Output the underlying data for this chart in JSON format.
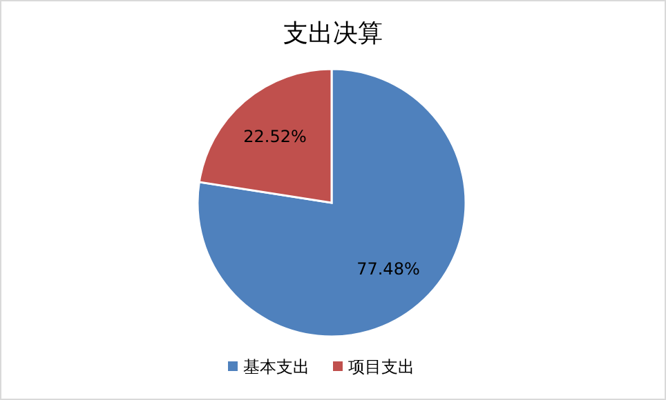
{
  "chart_data": {
    "type": "pie",
    "title": "支出决算",
    "categories": [
      "基本支出",
      "项目支出"
    ],
    "values": [
      77.48,
      22.52
    ],
    "colors": [
      "#4f81bd",
      "#c0504d"
    ],
    "value_labels": [
      "77.48%",
      "22.52%"
    ],
    "legend": "bottom"
  }
}
